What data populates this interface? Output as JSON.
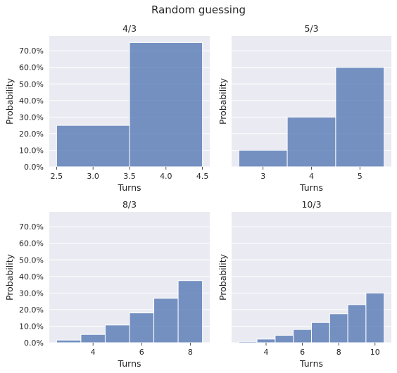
{
  "figure": {
    "title": "Random guessing"
  },
  "style": {
    "bar_color": "#4c72b0",
    "panel_bg": "#eaeaf2",
    "grid_color": "#ffffff"
  },
  "chart_data": [
    {
      "type": "bar",
      "title": "4/3",
      "xlabel": "Turns",
      "ylabel": "Probability",
      "bins": [
        {
          "x0": 2.5,
          "x1": 3.5,
          "value": 0.25
        },
        {
          "x0": 3.5,
          "x1": 4.5,
          "value": 0.75
        }
      ],
      "xlim": [
        2.4,
        4.6
      ],
      "xticks": [
        2.5,
        3.0,
        3.5,
        4.0,
        4.5
      ],
      "xtick_labels": [
        "2.5",
        "3.0",
        "3.5",
        "4.0",
        "4.5"
      ],
      "ylim": [
        0,
        0.79
      ],
      "yticks": [
        0,
        0.1,
        0.2,
        0.3,
        0.4,
        0.5,
        0.6,
        0.7
      ],
      "ytick_labels": [
        "0.0%",
        "10.0%",
        "20.0%",
        "30.0%",
        "40.0%",
        "50.0%",
        "60.0%",
        "70.0%"
      ],
      "show_ytick_labels": true,
      "grid": true
    },
    {
      "type": "bar",
      "title": "5/3",
      "xlabel": "Turns",
      "ylabel": "Probability",
      "bins": [
        {
          "x0": 2.5,
          "x1": 3.5,
          "value": 0.1
        },
        {
          "x0": 3.5,
          "x1": 4.5,
          "value": 0.3
        },
        {
          "x0": 4.5,
          "x1": 5.5,
          "value": 0.6
        }
      ],
      "xlim": [
        2.35,
        5.65
      ],
      "xticks": [
        3,
        4,
        5
      ],
      "xtick_labels": [
        "3",
        "4",
        "5"
      ],
      "ylim": [
        0,
        0.79
      ],
      "yticks": [
        0,
        0.1,
        0.2,
        0.3,
        0.4,
        0.5,
        0.6,
        0.7
      ],
      "ytick_labels": [],
      "show_ytick_labels": false,
      "grid": true
    },
    {
      "type": "bar",
      "title": "8/3",
      "xlabel": "Turns",
      "ylabel": "Probability",
      "bins": [
        {
          "x0": 2.5,
          "x1": 3.5,
          "value": 0.016
        },
        {
          "x0": 3.5,
          "x1": 4.5,
          "value": 0.05
        },
        {
          "x0": 4.5,
          "x1": 5.5,
          "value": 0.107
        },
        {
          "x0": 5.5,
          "x1": 6.5,
          "value": 0.18
        },
        {
          "x0": 6.5,
          "x1": 7.5,
          "value": 0.268
        },
        {
          "x0": 7.5,
          "x1": 8.5,
          "value": 0.375
        }
      ],
      "xlim": [
        2.2,
        8.8
      ],
      "xticks": [
        4,
        6,
        8
      ],
      "xtick_labels": [
        "4",
        "6",
        "8"
      ],
      "ylim": [
        0,
        0.79
      ],
      "yticks": [
        0,
        0.1,
        0.2,
        0.3,
        0.4,
        0.5,
        0.6,
        0.7
      ],
      "ytick_labels": [
        "0.0%",
        "10.0%",
        "20.0%",
        "30.0%",
        "40.0%",
        "50.0%",
        "60.0%",
        "70.0%"
      ],
      "show_ytick_labels": true,
      "grid": true
    },
    {
      "type": "bar",
      "title": "10/3",
      "xlabel": "Turns",
      "ylabel": "Probability",
      "bins": [
        {
          "x0": 2.5,
          "x1": 3.5,
          "value": 0.007
        },
        {
          "x0": 3.5,
          "x1": 4.5,
          "value": 0.022
        },
        {
          "x0": 4.5,
          "x1": 5.5,
          "value": 0.045
        },
        {
          "x0": 5.5,
          "x1": 6.5,
          "value": 0.08
        },
        {
          "x0": 6.5,
          "x1": 7.5,
          "value": 0.122
        },
        {
          "x0": 7.5,
          "x1": 8.5,
          "value": 0.175
        },
        {
          "x0": 8.5,
          "x1": 9.5,
          "value": 0.23
        },
        {
          "x0": 9.5,
          "x1": 10.5,
          "value": 0.3
        }
      ],
      "xlim": [
        2.1,
        10.9
      ],
      "xticks": [
        4,
        6,
        8,
        10
      ],
      "xtick_labels": [
        "4",
        "6",
        "8",
        "10"
      ],
      "ylim": [
        0,
        0.79
      ],
      "yticks": [
        0,
        0.1,
        0.2,
        0.3,
        0.4,
        0.5,
        0.6,
        0.7
      ],
      "ytick_labels": [],
      "show_ytick_labels": false,
      "grid": true
    }
  ]
}
